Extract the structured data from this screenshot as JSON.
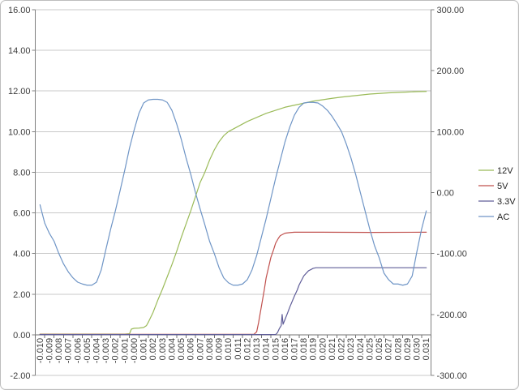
{
  "window": {
    "background_color": "#FFFFFF",
    "border_color": "#BDBDBD"
  },
  "chart_data": {
    "type": "line",
    "title": "",
    "grid": true,
    "gridline_color": "#C9C9C9",
    "axis_line_color": "#808080",
    "legend_position": "right",
    "x_axis": {
      "value_min": -0.01,
      "value_step": 0.001,
      "labels": [
        "-0.010",
        "-0.009",
        "-0.008",
        "-0.007",
        "-0.006",
        "-0.005",
        "-0.004",
        "-0.003",
        "-0.002",
        "-0.001",
        "-0.000",
        "0.001",
        "0.002",
        "0.003",
        "0.004",
        "0.005",
        "0.006",
        "0.007",
        "0.008",
        "0.009",
        "0.010",
        "0.011",
        "0.012",
        "0.013",
        "0.014",
        "0.015",
        "0.016",
        "0.017",
        "0.018",
        "0.019",
        "0.020",
        "0.021",
        "0.022",
        "0.023",
        "0.024",
        "0.025",
        "0.026",
        "0.027",
        "0.028",
        "0.029",
        "0.030",
        "0.031"
      ]
    },
    "y_axis_left": {
      "min": -2,
      "max": 16,
      "step": 2,
      "tick_labels": [
        "16.00",
        "14.00",
        "12.00",
        "10.00",
        "8.00",
        "6.00",
        "4.00",
        "2.00",
        "0.00",
        "-2.00"
      ]
    },
    "y_axis_right": {
      "min": -300,
      "max": 300,
      "step": 100,
      "tick_labels": [
        "300.00",
        "200.00",
        "100.00",
        "0.00",
        "-100.00",
        "-200.00",
        "-300.00"
      ]
    },
    "series": [
      {
        "name": "12V",
        "color": "#9BBB59",
        "axis": "left",
        "points": [
          [
            -0.01,
            0.03
          ],
          [
            -0.001,
            0.03
          ],
          [
            -0.0005,
            0.05
          ],
          [
            -0.0003,
            0.28
          ],
          [
            0.0,
            0.32
          ],
          [
            0.0005,
            0.33
          ],
          [
            0.001,
            0.36
          ],
          [
            0.0013,
            0.45
          ],
          [
            0.0015,
            0.62
          ],
          [
            0.002,
            1.1
          ],
          [
            0.0025,
            1.7
          ],
          [
            0.003,
            2.25
          ],
          [
            0.0035,
            2.85
          ],
          [
            0.004,
            3.45
          ],
          [
            0.0045,
            4.1
          ],
          [
            0.005,
            4.8
          ],
          [
            0.0055,
            5.45
          ],
          [
            0.006,
            6.1
          ],
          [
            0.0065,
            6.8
          ],
          [
            0.007,
            7.5
          ],
          [
            0.0075,
            8.0
          ],
          [
            0.008,
            8.6
          ],
          [
            0.0085,
            9.1
          ],
          [
            0.009,
            9.5
          ],
          [
            0.0095,
            9.8
          ],
          [
            0.01,
            10.0
          ],
          [
            0.011,
            10.25
          ],
          [
            0.012,
            10.5
          ],
          [
            0.013,
            10.7
          ],
          [
            0.014,
            10.9
          ],
          [
            0.015,
            11.05
          ],
          [
            0.016,
            11.2
          ],
          [
            0.017,
            11.3
          ],
          [
            0.018,
            11.4
          ],
          [
            0.019,
            11.5
          ],
          [
            0.02,
            11.57
          ],
          [
            0.021,
            11.64
          ],
          [
            0.022,
            11.7
          ],
          [
            0.023,
            11.75
          ],
          [
            0.024,
            11.8
          ],
          [
            0.025,
            11.85
          ],
          [
            0.026,
            11.88
          ],
          [
            0.027,
            11.91
          ],
          [
            0.028,
            11.93
          ],
          [
            0.029,
            11.95
          ],
          [
            0.03,
            11.97
          ],
          [
            0.031,
            11.98
          ]
        ]
      },
      {
        "name": "5V",
        "color": "#C0504D",
        "axis": "left",
        "points": [
          [
            -0.01,
            0.02
          ],
          [
            0.0127,
            0.02
          ],
          [
            0.013,
            0.15
          ],
          [
            0.0132,
            0.6
          ],
          [
            0.0135,
            1.4
          ],
          [
            0.0138,
            2.2
          ],
          [
            0.014,
            2.8
          ],
          [
            0.0143,
            3.4
          ],
          [
            0.0145,
            3.8
          ],
          [
            0.0148,
            4.2
          ],
          [
            0.015,
            4.5
          ],
          [
            0.0153,
            4.75
          ],
          [
            0.0155,
            4.88
          ],
          [
            0.016,
            5.0
          ],
          [
            0.0165,
            5.03
          ],
          [
            0.017,
            5.05
          ],
          [
            0.02,
            5.05
          ],
          [
            0.025,
            5.04
          ],
          [
            0.031,
            5.05
          ]
        ]
      },
      {
        "name": "3.3V",
        "color": "#605E99",
        "axis": "left",
        "points": [
          [
            -0.01,
            0.01
          ],
          [
            0.015,
            0.01
          ],
          [
            0.0152,
            0.1
          ],
          [
            0.0154,
            0.3
          ],
          [
            0.0156,
            0.45
          ],
          [
            0.0157,
            1.0
          ],
          [
            0.0158,
            0.52
          ],
          [
            0.016,
            0.75
          ],
          [
            0.0163,
            1.1
          ],
          [
            0.0165,
            1.35
          ],
          [
            0.017,
            1.9
          ],
          [
            0.0173,
            2.2
          ],
          [
            0.0175,
            2.45
          ],
          [
            0.018,
            2.9
          ],
          [
            0.0183,
            3.05
          ],
          [
            0.0185,
            3.15
          ],
          [
            0.019,
            3.27
          ],
          [
            0.0193,
            3.3
          ],
          [
            0.025,
            3.3
          ],
          [
            0.031,
            3.3
          ]
        ]
      },
      {
        "name": "AC",
        "color": "#6F95C6",
        "axis": "right",
        "points": [
          [
            -0.01,
            -20
          ],
          [
            -0.0095,
            -50
          ],
          [
            -0.009,
            -67
          ],
          [
            -0.0085,
            -80
          ],
          [
            -0.008,
            -100
          ],
          [
            -0.0075,
            -117
          ],
          [
            -0.007,
            -130
          ],
          [
            -0.0065,
            -140
          ],
          [
            -0.006,
            -147
          ],
          [
            -0.0055,
            -150
          ],
          [
            -0.005,
            -152
          ],
          [
            -0.0045,
            -152
          ],
          [
            -0.004,
            -147
          ],
          [
            -0.0035,
            -127
          ],
          [
            -0.003,
            -93
          ],
          [
            -0.0025,
            -60
          ],
          [
            -0.002,
            -30
          ],
          [
            -0.0015,
            3
          ],
          [
            -0.001,
            37
          ],
          [
            -0.0005,
            73
          ],
          [
            0.0,
            103
          ],
          [
            0.0005,
            130
          ],
          [
            0.001,
            147
          ],
          [
            0.0015,
            152
          ],
          [
            0.002,
            153
          ],
          [
            0.0025,
            153
          ],
          [
            0.003,
            152
          ],
          [
            0.0035,
            148
          ],
          [
            0.004,
            135
          ],
          [
            0.0045,
            113
          ],
          [
            0.005,
            87
          ],
          [
            0.0055,
            57
          ],
          [
            0.006,
            30
          ],
          [
            0.0065,
            0
          ],
          [
            0.007,
            -27
          ],
          [
            0.0075,
            -53
          ],
          [
            0.008,
            -80
          ],
          [
            0.0085,
            -100
          ],
          [
            0.009,
            -123
          ],
          [
            0.0095,
            -140
          ],
          [
            0.01,
            -148
          ],
          [
            0.0105,
            -152
          ],
          [
            0.011,
            -152
          ],
          [
            0.0115,
            -150
          ],
          [
            0.012,
            -143
          ],
          [
            0.0125,
            -127
          ],
          [
            0.013,
            -103
          ],
          [
            0.0135,
            -73
          ],
          [
            0.014,
            -43
          ],
          [
            0.0145,
            -10
          ],
          [
            0.015,
            23
          ],
          [
            0.0155,
            53
          ],
          [
            0.016,
            83
          ],
          [
            0.0165,
            107
          ],
          [
            0.017,
            127
          ],
          [
            0.0175,
            140
          ],
          [
            0.018,
            147
          ],
          [
            0.0185,
            148
          ],
          [
            0.019,
            148
          ],
          [
            0.0195,
            147
          ],
          [
            0.02,
            142
          ],
          [
            0.0205,
            135
          ],
          [
            0.021,
            125
          ],
          [
            0.0215,
            113
          ],
          [
            0.022,
            100
          ],
          [
            0.0225,
            80
          ],
          [
            0.023,
            57
          ],
          [
            0.0235,
            30
          ],
          [
            0.024,
            0
          ],
          [
            0.0245,
            -30
          ],
          [
            0.025,
            -60
          ],
          [
            0.0255,
            -87
          ],
          [
            0.026,
            -107
          ],
          [
            0.0265,
            -132
          ],
          [
            0.027,
            -143
          ],
          [
            0.0275,
            -150
          ],
          [
            0.028,
            -150
          ],
          [
            0.0285,
            -152
          ],
          [
            0.029,
            -150
          ],
          [
            0.0295,
            -137
          ],
          [
            0.03,
            -97
          ],
          [
            0.0305,
            -60
          ],
          [
            0.031,
            -30
          ]
        ]
      }
    ],
    "legend": {
      "entries": [
        "12V",
        "5V",
        "3.3V",
        "AC"
      ]
    }
  }
}
